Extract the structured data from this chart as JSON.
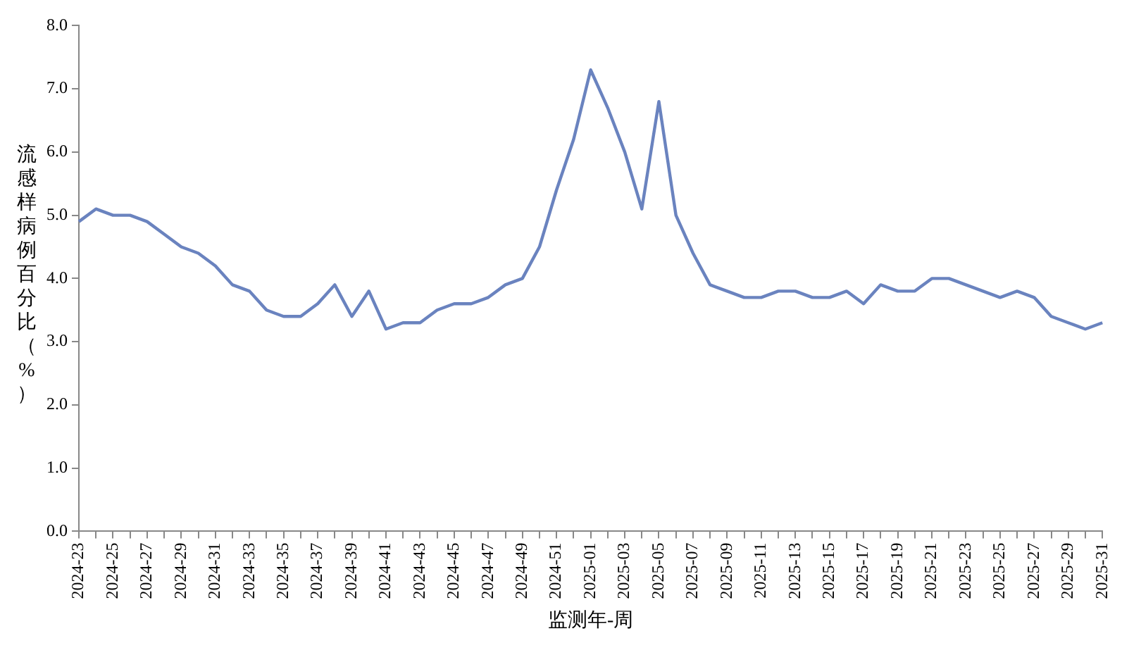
{
  "chart_data": {
    "type": "line",
    "xlabel": "监测年-周",
    "ylabel": "流感样病例百分比（%）",
    "categories": [
      "2024-23",
      null,
      "2024-25",
      null,
      "2024-27",
      null,
      "2024-29",
      null,
      "2024-31",
      null,
      "2024-33",
      null,
      "2024-35",
      null,
      "2024-37",
      null,
      "2024-39",
      null,
      "2024-41",
      null,
      "2024-43",
      null,
      "2024-45",
      null,
      "2024-47",
      null,
      "2024-49",
      null,
      "2024-51",
      null,
      "2025-01",
      null,
      "2025-03",
      null,
      "2025-05",
      null,
      "2025-07",
      null,
      "2025-09",
      null,
      "2025-11",
      null,
      "2025-13",
      null,
      "2025-15",
      null,
      "2025-17",
      null,
      "2025-19",
      null,
      "2025-21",
      null,
      "2025-23",
      null,
      "2025-25",
      null,
      "2025-27",
      null,
      "2025-29",
      null,
      "2025-31"
    ],
    "series": [
      {
        "color": "#6a83bf",
        "values": [
          4.9,
          5.1,
          5.0,
          5.0,
          4.9,
          4.7,
          4.5,
          4.4,
          4.2,
          3.9,
          3.8,
          3.5,
          3.4,
          3.4,
          3.6,
          3.9,
          3.4,
          3.8,
          3.2,
          3.3,
          3.3,
          3.5,
          3.6,
          3.6,
          3.7,
          3.9,
          4.0,
          4.5,
          5.4,
          6.2,
          7.3,
          6.7,
          6.0,
          5.1,
          6.8,
          5.0,
          4.4,
          3.9,
          3.8,
          3.7,
          3.7,
          3.8,
          3.8,
          3.7,
          3.7,
          3.8,
          3.6,
          3.9,
          3.8,
          3.8,
          4.0,
          4.0,
          3.9,
          3.8,
          3.7,
          3.8,
          3.7,
          3.4,
          3.3,
          3.2,
          3.3
        ]
      }
    ],
    "ylim": [
      0,
      8
    ],
    "yticks": [
      {
        "value": 0,
        "label": "0.0"
      },
      {
        "value": 1,
        "label": "1.0"
      },
      {
        "value": 2,
        "label": "2.0"
      },
      {
        "value": 3,
        "label": "3.0"
      },
      {
        "value": 4,
        "label": "4.0"
      },
      {
        "value": 5,
        "label": "5.0"
      },
      {
        "value": 6,
        "label": "6.0"
      },
      {
        "value": 7,
        "label": "7.0"
      },
      {
        "value": 8,
        "label": "8.0"
      }
    ],
    "grid": false,
    "legend": false,
    "marker": "none",
    "line_style": "solid"
  }
}
